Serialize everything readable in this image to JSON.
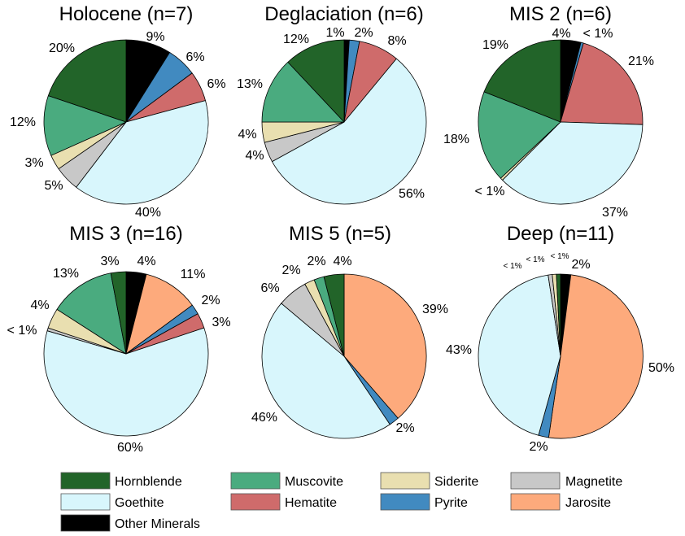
{
  "legend": [
    {
      "name": "Hornblende",
      "color": "#226429"
    },
    {
      "name": "Muscovite",
      "color": "#4aab7f"
    },
    {
      "name": "Siderite",
      "color": "#e9dfb0"
    },
    {
      "name": "Magnetite",
      "color": "#c8c8c8"
    },
    {
      "name": "Goethite",
      "color": "#d8f6fc"
    },
    {
      "name": "Hematite",
      "color": "#cf6b6b"
    },
    {
      "name": "Pyrite",
      "color": "#418ac0"
    },
    {
      "name": "Jarosite",
      "color": "#fdaa7c"
    },
    {
      "name": "Other Minerals",
      "color": "#000000"
    }
  ],
  "chart_data": [
    {
      "type": "pie",
      "title": "Holocene (n=7)",
      "slices": [
        {
          "category": "Other Minerals",
          "value": 9,
          "label": "9%"
        },
        {
          "category": "Pyrite",
          "value": 6,
          "label": "6%"
        },
        {
          "category": "Hematite",
          "value": 6,
          "label": "6%"
        },
        {
          "category": "Goethite",
          "value": 40,
          "label": "40%"
        },
        {
          "category": "Magnetite",
          "value": 5,
          "label": "5%"
        },
        {
          "category": "Siderite",
          "value": 3,
          "label": "3%"
        },
        {
          "category": "Muscovite",
          "value": 12,
          "label": "12%"
        },
        {
          "category": "Hornblende",
          "value": 20,
          "label": "20%"
        }
      ]
    },
    {
      "type": "pie",
      "title": "Deglaciation (n=6)",
      "slices": [
        {
          "category": "Other Minerals",
          "value": 1,
          "label": "1%"
        },
        {
          "category": "Pyrite",
          "value": 2,
          "label": "2%"
        },
        {
          "category": "Hematite",
          "value": 8,
          "label": "8%"
        },
        {
          "category": "Goethite",
          "value": 56,
          "label": "56%"
        },
        {
          "category": "Magnetite",
          "value": 4,
          "label": "4%"
        },
        {
          "category": "Siderite",
          "value": 4,
          "label": "4%"
        },
        {
          "category": "Muscovite",
          "value": 13,
          "label": "13%"
        },
        {
          "category": "Hornblende",
          "value": 12,
          "label": "12%"
        }
      ]
    },
    {
      "type": "pie",
      "title": "MIS 2 (n=6)",
      "slices": [
        {
          "category": "Other Minerals",
          "value": 4,
          "label": "4%"
        },
        {
          "category": "Pyrite",
          "value": 0.5,
          "label": "< 1%"
        },
        {
          "category": "Hematite",
          "value": 21,
          "label": "21%"
        },
        {
          "category": "Goethite",
          "value": 37,
          "label": "37%"
        },
        {
          "category": "Siderite",
          "value": 0.5,
          "label": "< 1%"
        },
        {
          "category": "Muscovite",
          "value": 18,
          "label": "18%"
        },
        {
          "category": "Hornblende",
          "value": 19,
          "label": "19%"
        }
      ]
    },
    {
      "type": "pie",
      "title": "MIS 3 (n=16)",
      "slices": [
        {
          "category": "Other Minerals",
          "value": 4,
          "label": "4%"
        },
        {
          "category": "Jarosite",
          "value": 11,
          "label": "11%"
        },
        {
          "category": "Pyrite",
          "value": 2,
          "label": "2%"
        },
        {
          "category": "Hematite",
          "value": 3,
          "label": "3%"
        },
        {
          "category": "Goethite",
          "value": 60,
          "label": "60%"
        },
        {
          "category": "Magnetite",
          "value": 0.6,
          "label": "< 1%"
        },
        {
          "category": "Siderite",
          "value": 4,
          "label": "4%"
        },
        {
          "category": "Muscovite",
          "value": 13,
          "label": "13%"
        },
        {
          "category": "Hornblende",
          "value": 3,
          "label": "3%"
        }
      ]
    },
    {
      "type": "pie",
      "title": "MIS 5 (n=5)",
      "slices": [
        {
          "category": "Jarosite",
          "value": 39,
          "label": "39%"
        },
        {
          "category": "Pyrite",
          "value": 2,
          "label": "2%"
        },
        {
          "category": "Goethite",
          "value": 46,
          "label": "46%"
        },
        {
          "category": "Magnetite",
          "value": 6,
          "label": "6%"
        },
        {
          "category": "Siderite",
          "value": 2,
          "label": "2%"
        },
        {
          "category": "Muscovite",
          "value": 2,
          "label": "2%"
        },
        {
          "category": "Hornblende",
          "value": 4,
          "label": "4%"
        }
      ]
    },
    {
      "type": "pie",
      "title": "Deep (n=11)",
      "slices": [
        {
          "category": "Other Minerals",
          "value": 2,
          "label": "2%"
        },
        {
          "category": "Jarosite",
          "value": 50,
          "label": "50%"
        },
        {
          "category": "Pyrite",
          "value": 2,
          "label": "2%"
        },
        {
          "category": "Goethite",
          "value": 43,
          "label": "43%"
        },
        {
          "category": "Magnetite",
          "value": 0.8,
          "label": "< 1%"
        },
        {
          "category": "Siderite",
          "value": 0.8,
          "label": "< 1%"
        },
        {
          "category": "Hornblende",
          "value": 0.8,
          "label": "< 1%"
        }
      ]
    }
  ]
}
